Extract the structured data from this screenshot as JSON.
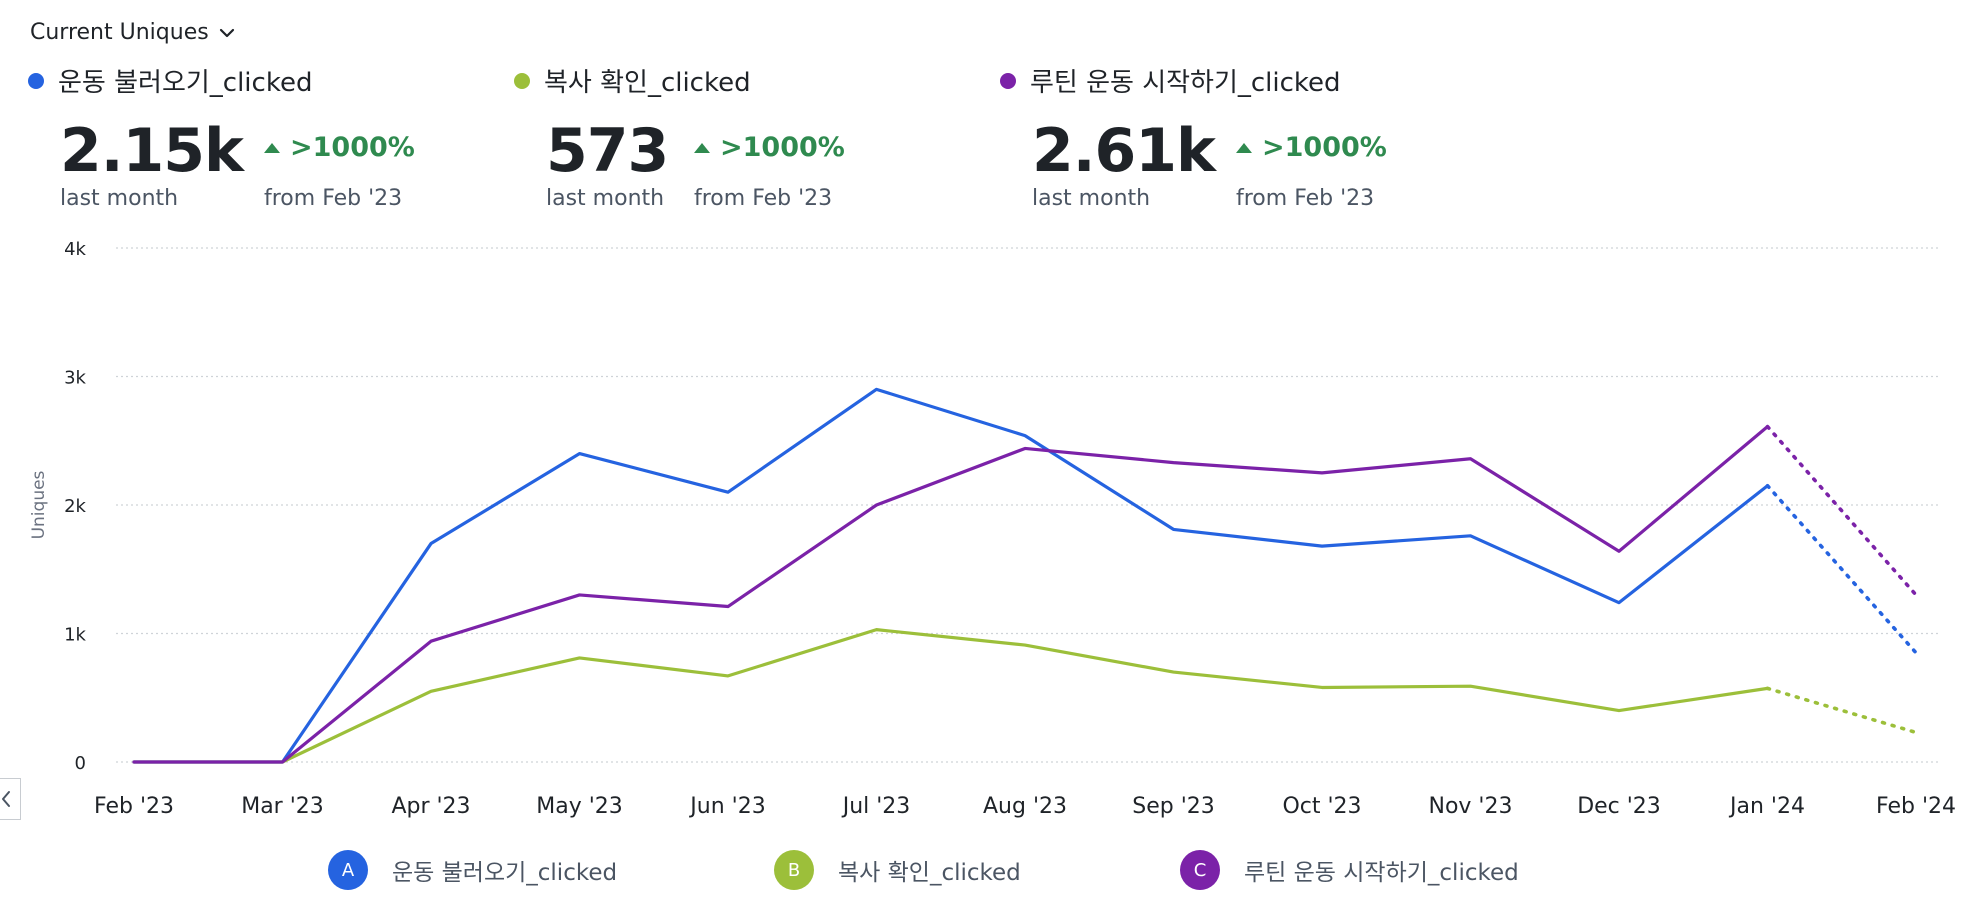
{
  "header": {
    "metric_label": "Current Uniques"
  },
  "summaries": [
    {
      "name": "운동 불러오기_clicked",
      "value": "2.15k",
      "value_sub": "last month",
      "delta": ">1000%",
      "delta_sub": "from Feb '23",
      "color": "#2563e0"
    },
    {
      "name": "복사 확인_clicked",
      "value": "573",
      "value_sub": "last month",
      "delta": ">1000%",
      "delta_sub": "from Feb '23",
      "color": "#9cbf3a"
    },
    {
      "name": "루틴 운동 시작하기_clicked",
      "value": "2.61k",
      "value_sub": "last month",
      "delta": ">1000%",
      "delta_sub": "from Feb '23",
      "color": "#7b22a8"
    }
  ],
  "colors": {
    "positive": "#2f8a4f",
    "grid": "#cfd3d8",
    "axis_text": "#1f2328"
  },
  "legend": [
    {
      "badge": "A",
      "label": "운동 불러오기_clicked",
      "color": "#2563e0"
    },
    {
      "badge": "B",
      "label": "복사 확인_clicked",
      "color": "#9cbf3a"
    },
    {
      "badge": "C",
      "label": "루틴 운동 시작하기_clicked",
      "color": "#7b22a8"
    }
  ],
  "chart_data": {
    "type": "line",
    "ylabel": "Uniques",
    "xlabel": "",
    "ylim": [
      0,
      4000
    ],
    "yticks": [
      0,
      1000,
      2000,
      3000,
      4000
    ],
    "ytick_labels": [
      "0",
      "1k",
      "2k",
      "3k",
      "4k"
    ],
    "categories": [
      "Feb '23",
      "Mar '23",
      "Apr '23",
      "May '23",
      "Jun '23",
      "Jul '23",
      "Aug '23",
      "Sep '23",
      "Oct '23",
      "Nov '23",
      "Dec '23",
      "Jan '24",
      "Feb '24"
    ],
    "grid": true,
    "projected_from_index": 11,
    "series": [
      {
        "name": "운동 불러오기_clicked",
        "color": "#2563e0",
        "values": [
          0,
          0,
          1700,
          2400,
          2100,
          2900,
          2540,
          1810,
          1680,
          1760,
          1240,
          2150,
          850
        ]
      },
      {
        "name": "복사 확인_clicked",
        "color": "#9cbf3a",
        "values": [
          0,
          0,
          550,
          810,
          670,
          1030,
          910,
          700,
          580,
          590,
          400,
          573,
          230
        ]
      },
      {
        "name": "루틴 운동 시작하기_clicked",
        "color": "#7b22a8",
        "values": [
          0,
          0,
          940,
          1300,
          1210,
          2000,
          2440,
          2330,
          2250,
          2360,
          1640,
          2610,
          1300
        ]
      }
    ]
  }
}
